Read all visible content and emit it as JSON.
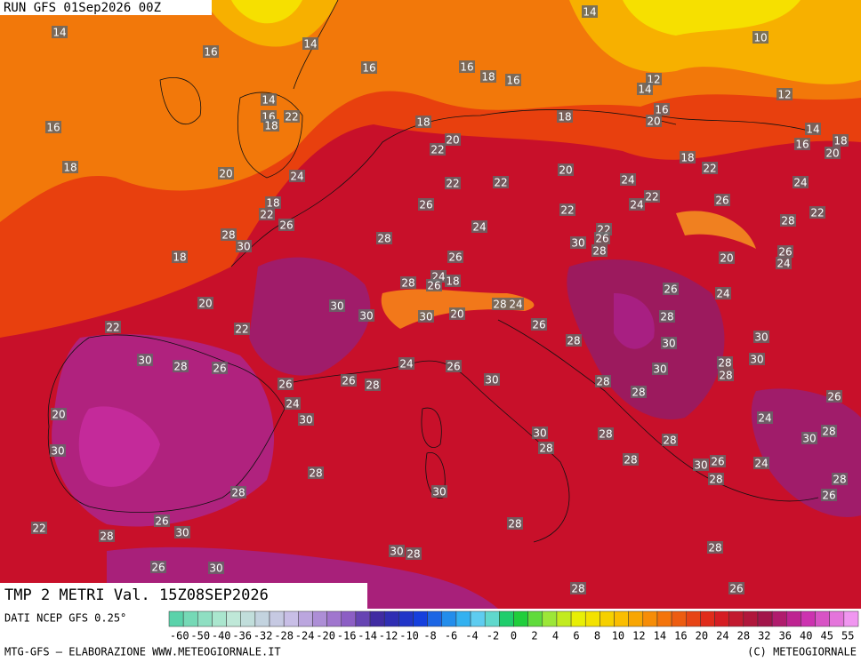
{
  "header": {
    "run": "RUN GFS 01Sep2026 00Z"
  },
  "title": "TMP 2 METRI Val. 15Z08SEP2026",
  "legend": {
    "source": "DATI NCEP GFS 0.25°",
    "ticks": [
      -60,
      -50,
      -40,
      -36,
      -32,
      -28,
      -24,
      -20,
      -16,
      -14,
      -12,
      -10,
      -8,
      -6,
      -4,
      -2,
      0,
      2,
      4,
      6,
      8,
      10,
      12,
      14,
      16,
      20,
      24,
      28,
      32,
      36,
      40,
      45,
      55
    ]
  },
  "footer": {
    "left": "MTG-GFS — ELABORAZIONE WWW.METEOGIORNALE.IT",
    "right": "(C) METEOGIORNALE"
  },
  "map": {
    "labels": [
      14,
      14,
      16,
      14,
      10,
      16,
      16,
      18,
      16,
      12,
      14,
      12,
      14,
      16,
      22,
      18,
      16,
      20,
      18,
      18,
      16,
      14,
      16,
      18,
      20,
      20,
      22,
      18,
      22,
      18,
      20,
      24,
      20,
      24,
      22,
      22,
      24,
      22,
      24,
      26,
      18,
      22,
      26,
      26,
      22,
      22,
      28,
      24,
      22,
      26,
      30,
      28,
      28,
      30,
      28,
      26,
      24,
      18,
      26,
      20,
      24,
      18,
      28,
      26,
      26,
      24,
      20,
      30,
      30,
      28,
      24,
      30,
      20,
      28,
      22,
      22,
      26,
      28,
      30,
      30,
      30,
      28,
      26,
      24,
      26,
      28,
      30,
      30,
      28,
      26,
      26,
      28,
      30,
      28,
      28,
      26,
      24,
      30,
      24,
      20,
      30,
      28,
      28,
      30,
      28,
      30,
      28,
      28,
      30,
      26,
      24,
      28,
      28,
      28,
      30,
      28,
      26,
      26,
      30,
      22,
      28,
      28,
      28,
      26,
      30,
      30,
      28,
      28,
      26
    ]
  }
}
